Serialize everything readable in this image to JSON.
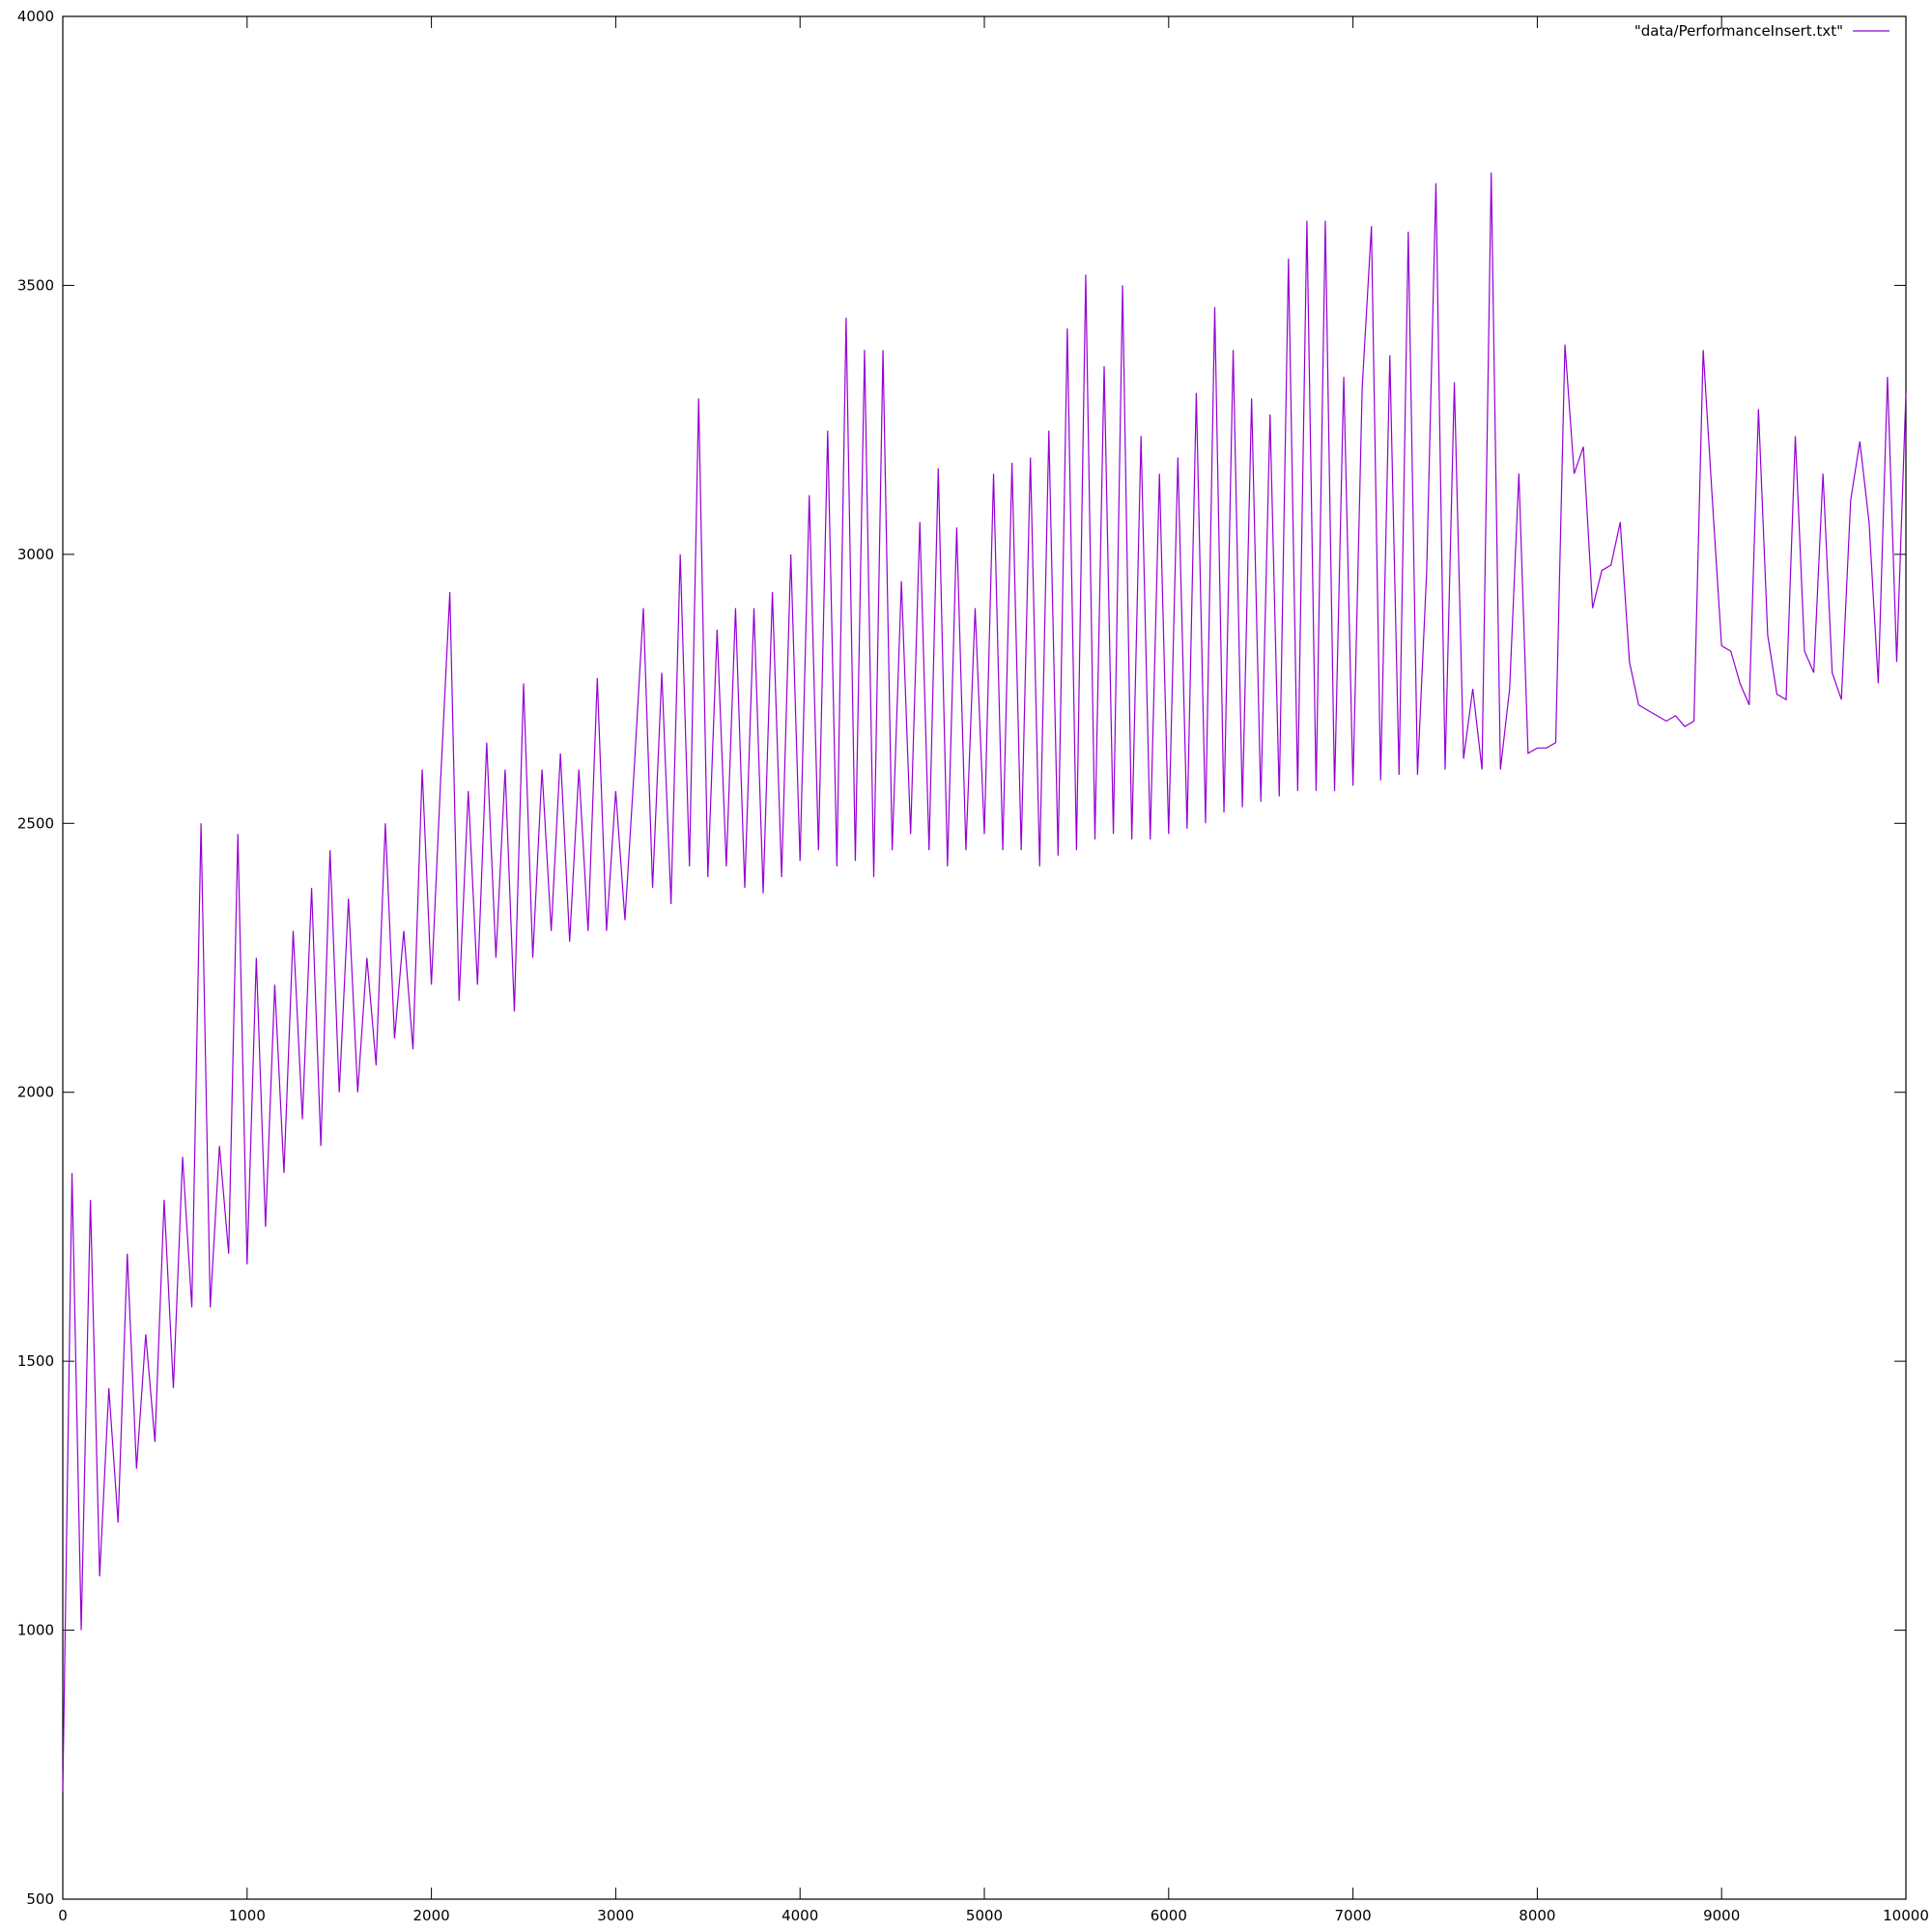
{
  "chart_data": {
    "type": "line",
    "x": [
      0,
      50,
      100,
      150,
      200,
      250,
      300,
      350,
      400,
      450,
      500,
      550,
      600,
      650,
      700,
      750,
      800,
      850,
      900,
      950,
      1000,
      1050,
      1100,
      1150,
      1200,
      1250,
      1300,
      1350,
      1400,
      1450,
      1500,
      1550,
      1600,
      1650,
      1700,
      1750,
      1800,
      1850,
      1900,
      1950,
      2000,
      2050,
      2100,
      2150,
      2200,
      2250,
      2300,
      2350,
      2400,
      2450,
      2500,
      2550,
      2600,
      2650,
      2700,
      2750,
      2800,
      2850,
      2900,
      2950,
      3000,
      3050,
      3100,
      3150,
      3200,
      3250,
      3300,
      3350,
      3400,
      3450,
      3500,
      3550,
      3600,
      3650,
      3700,
      3750,
      3800,
      3850,
      3900,
      3950,
      4000,
      4050,
      4100,
      4150,
      4200,
      4250,
      4300,
      4350,
      4400,
      4450,
      4500,
      4550,
      4600,
      4650,
      4700,
      4750,
      4800,
      4850,
      4900,
      4950,
      5000,
      5050,
      5100,
      5150,
      5200,
      5250,
      5300,
      5350,
      5400,
      5450,
      5500,
      5550,
      5600,
      5650,
      5700,
      5750,
      5800,
      5850,
      5900,
      5950,
      6000,
      6050,
      6100,
      6150,
      6200,
      6250,
      6300,
      6350,
      6400,
      6450,
      6500,
      6550,
      6600,
      6650,
      6700,
      6750,
      6800,
      6850,
      6900,
      6950,
      7000,
      7050,
      7100,
      7150,
      7200,
      7250,
      7300,
      7350,
      7400,
      7450,
      7500,
      7550,
      7600,
      7650,
      7700,
      7750,
      7800,
      7850,
      7900,
      7950,
      8000,
      8050,
      8100,
      8150,
      8200,
      8250,
      8300,
      8350,
      8400,
      8450,
      8500,
      8550,
      8600,
      8650,
      8700,
      8750,
      8800,
      8850,
      8900,
      8950,
      9000,
      9050,
      9100,
      9150,
      9200,
      9250,
      9300,
      9350,
      9400,
      9450,
      9500,
      9550,
      9600,
      9650,
      9700,
      9750,
      9800,
      9850,
      9900,
      9950,
      10000
    ],
    "series": [
      {
        "name": "\"data/PerformanceInsert.txt\"",
        "color": "#9400d3",
        "values": [
          700,
          1850,
          1000,
          1800,
          1100,
          1450,
          1200,
          1700,
          1300,
          1550,
          1350,
          1800,
          1450,
          1880,
          1600,
          2500,
          1600,
          1900,
          1700,
          2480,
          1680,
          2250,
          1750,
          2200,
          1850,
          2300,
          1950,
          2380,
          1900,
          2450,
          2000,
          2360,
          2000,
          2250,
          2050,
          2500,
          2100,
          2300,
          2080,
          2600,
          2200,
          2580,
          2930,
          2170,
          2560,
          2200,
          2650,
          2250,
          2600,
          2150,
          2760,
          2250,
          2600,
          2300,
          2630,
          2280,
          2600,
          2300,
          2770,
          2300,
          2560,
          2320,
          2600,
          2900,
          2380,
          2780,
          2350,
          3000,
          2420,
          3290,
          2400,
          2860,
          2420,
          2900,
          2380,
          2900,
          2370,
          2930,
          2400,
          3000,
          2430,
          3110,
          2450,
          3230,
          2420,
          3440,
          2430,
          3380,
          2400,
          3380,
          2450,
          2950,
          2480,
          3060,
          2450,
          3160,
          2420,
          3050,
          2450,
          2900,
          2480,
          3150,
          2450,
          3170,
          2450,
          3180,
          2420,
          3230,
          2440,
          3420,
          2450,
          3520,
          2470,
          3350,
          2480,
          3500,
          2470,
          3220,
          2470,
          3150,
          2480,
          3180,
          2490,
          3300,
          2500,
          3460,
          2520,
          3380,
          2530,
          3290,
          2540,
          3260,
          2550,
          3550,
          2560,
          3620,
          2560,
          3620,
          2560,
          3330,
          2570,
          3310,
          3610,
          2580,
          3370,
          2590,
          3600,
          2590,
          2970,
          3690,
          2600,
          3320,
          2620,
          2750,
          2600,
          3710,
          2600,
          2750,
          3150,
          2630,
          2640,
          2640,
          2650,
          3390,
          3150,
          3200,
          2900,
          2970,
          2980,
          3060,
          2800,
          2720,
          2710,
          2700,
          2690,
          2700,
          2680,
          2690,
          3380,
          3100,
          2830,
          2820,
          2760,
          2720,
          3270,
          2850,
          2740,
          2730,
          3220,
          2820,
          2780,
          3150,
          2780,
          2730,
          3100,
          3210,
          3060,
          2760,
          3330,
          2800,
          3300
        ]
      }
    ],
    "xlim": [
      0,
      10000
    ],
    "xticks": [
      0,
      1000,
      2000,
      3000,
      4000,
      5000,
      6000,
      7000,
      8000,
      9000,
      10000
    ],
    "ylim": [
      500,
      4000
    ],
    "yticks": [
      500,
      1000,
      1500,
      2000,
      2500,
      3000,
      3500,
      4000
    ],
    "grid": false,
    "legend": "top-right"
  }
}
